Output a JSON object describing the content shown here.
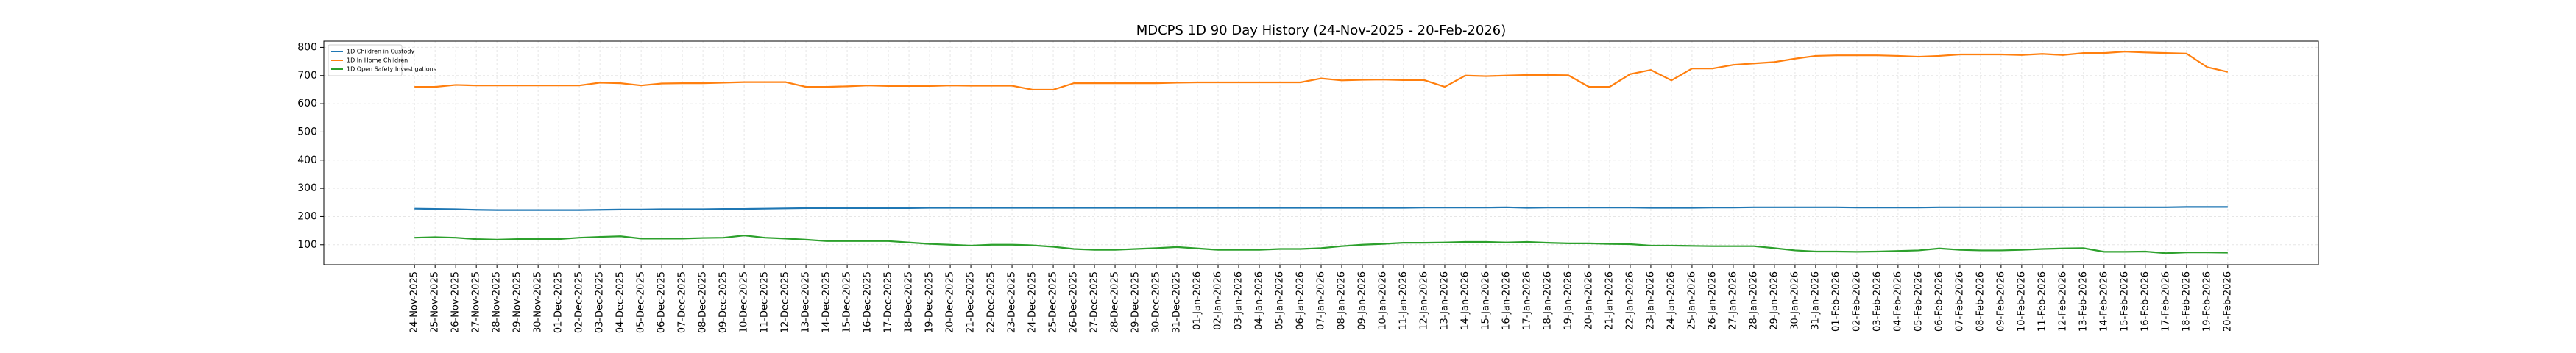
{
  "chart_data": {
    "type": "line",
    "title": "MDCPS 1D 90 Day History (24-Nov-2025 - 20-Feb-2026)",
    "categories": [
      "24-Nov-2025",
      "25-Nov-2025",
      "26-Nov-2025",
      "27-Nov-2025",
      "28-Nov-2025",
      "29-Nov-2025",
      "30-Nov-2025",
      "01-Dec-2025",
      "02-Dec-2025",
      "03-Dec-2025",
      "04-Dec-2025",
      "05-Dec-2025",
      "06-Dec-2025",
      "07-Dec-2025",
      "08-Dec-2025",
      "09-Dec-2025",
      "10-Dec-2025",
      "11-Dec-2025",
      "12-Dec-2025",
      "13-Dec-2025",
      "14-Dec-2025",
      "15-Dec-2025",
      "16-Dec-2025",
      "17-Dec-2025",
      "18-Dec-2025",
      "19-Dec-2025",
      "20-Dec-2025",
      "21-Dec-2025",
      "22-Dec-2025",
      "23-Dec-2025",
      "24-Dec-2025",
      "25-Dec-2025",
      "26-Dec-2025",
      "27-Dec-2025",
      "28-Dec-2025",
      "29-Dec-2025",
      "30-Dec-2025",
      "31-Dec-2025",
      "01-Jan-2026",
      "02-Jan-2026",
      "03-Jan-2026",
      "04-Jan-2026",
      "05-Jan-2026",
      "06-Jan-2026",
      "07-Jan-2026",
      "08-Jan-2026",
      "09-Jan-2026",
      "10-Jan-2026",
      "11-Jan-2026",
      "12-Jan-2026",
      "13-Jan-2026",
      "14-Jan-2026",
      "15-Jan-2026",
      "16-Jan-2026",
      "17-Jan-2026",
      "18-Jan-2026",
      "19-Jan-2026",
      "20-Jan-2026",
      "21-Jan-2026",
      "22-Jan-2026",
      "23-Jan-2026",
      "24-Jan-2026",
      "25-Jan-2026",
      "26-Jan-2026",
      "27-Jan-2026",
      "28-Jan-2026",
      "29-Jan-2026",
      "30-Jan-2026",
      "31-Jan-2026",
      "01-Feb-2026",
      "02-Feb-2026",
      "03-Feb-2026",
      "04-Feb-2026",
      "05-Feb-2026",
      "06-Feb-2026",
      "07-Feb-2026",
      "08-Feb-2026",
      "09-Feb-2026",
      "10-Feb-2026",
      "11-Feb-2026",
      "12-Feb-2026",
      "13-Feb-2026",
      "14-Feb-2026",
      "15-Feb-2026",
      "16-Feb-2026",
      "17-Feb-2026",
      "18-Feb-2026",
      "19-Feb-2026",
      "20-Feb-2026"
    ],
    "series": [
      {
        "name": "1D Children in Custody",
        "color": "#1f77b4",
        "values": [
          228,
          227,
          226,
          224,
          223,
          223,
          223,
          223,
          223,
          224,
          225,
          225,
          226,
          226,
          226,
          227,
          227,
          228,
          229,
          230,
          230,
          230,
          230,
          230,
          230,
          231,
          231,
          231,
          231,
          231,
          231,
          231,
          231,
          231,
          231,
          231,
          231,
          231,
          231,
          231,
          231,
          231,
          231,
          231,
          231,
          231,
          231,
          231,
          231,
          232,
          232,
          232,
          232,
          233,
          231,
          232,
          232,
          232,
          232,
          232,
          231,
          231,
          231,
          232,
          232,
          233,
          233,
          233,
          233,
          233,
          232,
          232,
          232,
          232,
          233,
          233,
          233,
          233,
          233,
          233,
          233,
          233,
          233,
          233,
          233,
          233,
          234,
          234,
          234
        ]
      },
      {
        "name": "1D In Home Children",
        "color": "#ff7f0e",
        "values": [
          660,
          660,
          667,
          665,
          665,
          665,
          665,
          665,
          665,
          675,
          673,
          665,
          672,
          673,
          673,
          675,
          677,
          677,
          677,
          660,
          660,
          662,
          665,
          663,
          663,
          663,
          665,
          664,
          664,
          664,
          650,
          650,
          673,
          673,
          673,
          673,
          673,
          675,
          676,
          676,
          676,
          676,
          676,
          676,
          690,
          683,
          685,
          686,
          684,
          684,
          660,
          700,
          698,
          700,
          702,
          702,
          701,
          660,
          660,
          705,
          720,
          683,
          725,
          725,
          738,
          743,
          748,
          760,
          770,
          772,
          772,
          772,
          770,
          767,
          770,
          775,
          775,
          775,
          773,
          777,
          773,
          780,
          780,
          785,
          782,
          780,
          778,
          730,
          713
        ]
      },
      {
        "name": "1D Open Safety Investigations",
        "color": "#2ca02c",
        "values": [
          125,
          127,
          125,
          120,
          118,
          120,
          120,
          120,
          125,
          128,
          130,
          122,
          122,
          122,
          124,
          125,
          133,
          125,
          122,
          118,
          113,
          113,
          113,
          113,
          108,
          103,
          100,
          97,
          100,
          100,
          98,
          93,
          85,
          82,
          82,
          85,
          88,
          92,
          87,
          82,
          82,
          82,
          85,
          85,
          88,
          95,
          100,
          103,
          107,
          107,
          108,
          110,
          110,
          108,
          110,
          107,
          105,
          105,
          103,
          102,
          97,
          97,
          96,
          95,
          95,
          95,
          88,
          80,
          76,
          76,
          75,
          76,
          78,
          80,
          87,
          82,
          80,
          80,
          82,
          85,
          87,
          88,
          75,
          75,
          76,
          70,
          73,
          73,
          72
        ]
      }
    ],
    "ylim": [
      29,
      822
    ],
    "yticks": [
      100,
      200,
      300,
      400,
      500,
      600,
      700,
      800
    ],
    "grid": true,
    "legend": "upper left"
  }
}
